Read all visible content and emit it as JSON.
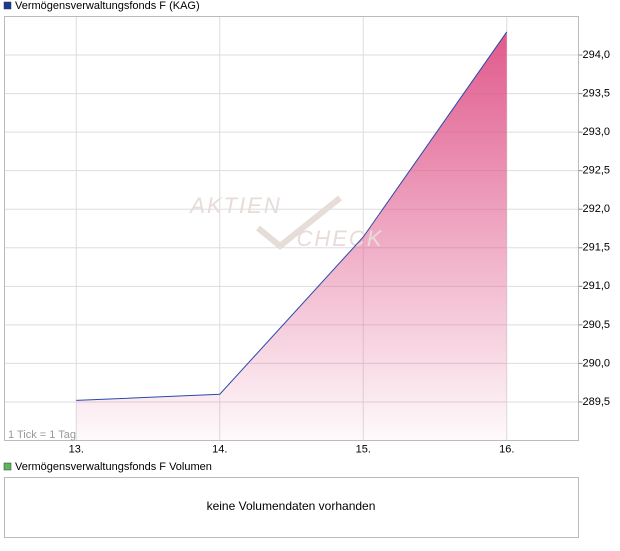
{
  "chart_data": [
    {
      "type": "area",
      "title": "Vermögensverwaltungsfonds F (KAG)",
      "legend_color": "#1a3a9a",
      "annotation": "1 Tick = 1 Tag",
      "watermark": [
        "AKTIEN",
        "CHECK"
      ],
      "x": [
        13,
        14,
        15,
        16
      ],
      "xlim": [
        12.5,
        16.5
      ],
      "xticks": [
        {
          "value": 13,
          "label": "13."
        },
        {
          "value": 14,
          "label": "14."
        },
        {
          "value": 15,
          "label": "15."
        },
        {
          "value": 16,
          "label": "16."
        }
      ],
      "ylim": [
        289.0,
        294.5
      ],
      "yticks": [
        {
          "value": 289.5,
          "label": "289,5"
        },
        {
          "value": 290.0,
          "label": "290,0"
        },
        {
          "value": 290.5,
          "label": "290,5"
        },
        {
          "value": 291.0,
          "label": "291,0"
        },
        {
          "value": 291.5,
          "label": "291,5"
        },
        {
          "value": 292.0,
          "label": "292,0"
        },
        {
          "value": 292.5,
          "label": "292,5"
        },
        {
          "value": 293.0,
          "label": "293,0"
        },
        {
          "value": 293.5,
          "label": "293,5"
        },
        {
          "value": 294.0,
          "label": "294,0"
        }
      ],
      "grid": true,
      "series": [
        {
          "name": "Vermögensverwaltungsfonds F (KAG)",
          "color": "#2a4aaa",
          "fill": "#e05a8c",
          "values": [
            289.52,
            289.6,
            291.64,
            294.3
          ]
        }
      ]
    },
    {
      "type": "empty",
      "title": "Vermögensverwaltungsfonds F Volumen",
      "legend_color": "#5cb85c",
      "message": "keine Volumendaten vorhanden"
    }
  ]
}
